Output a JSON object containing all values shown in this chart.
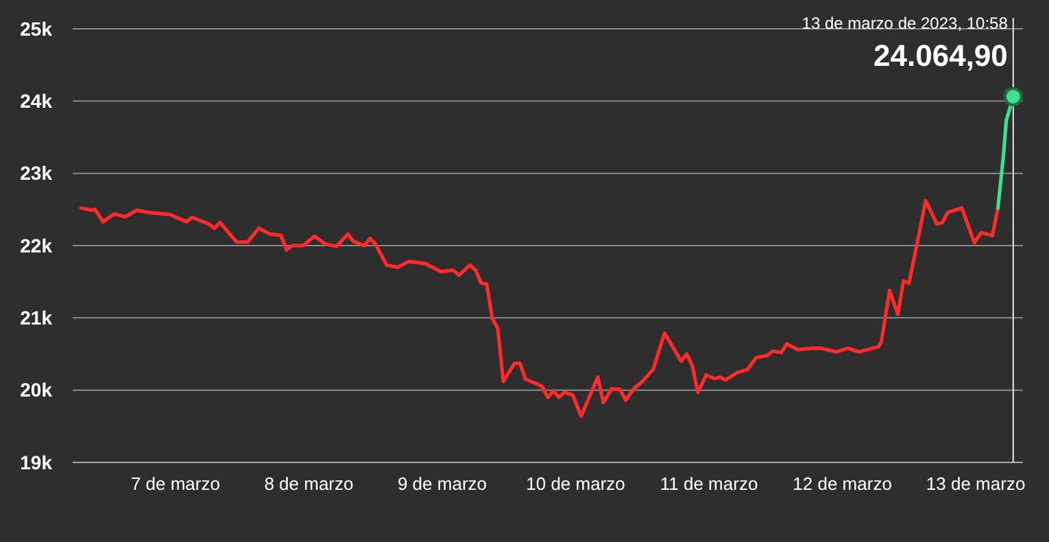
{
  "chart_data": {
    "type": "line",
    "grid": "y",
    "marker": "none",
    "line_style": "solid",
    "xlim": [
      "2023-03-06T05:30",
      "2023-03-13T08:30"
    ],
    "xticks": [
      {
        "value": "2023-03-07",
        "label": "7 de marzo"
      },
      {
        "value": "2023-03-08",
        "label": "8 de marzo"
      },
      {
        "value": "2023-03-09",
        "label": "9 de marzo"
      },
      {
        "value": "2023-03-10",
        "label": "10 de marzo"
      },
      {
        "value": "2023-03-11",
        "label": "11 de marzo"
      },
      {
        "value": "2023-03-12",
        "label": "12 de marzo"
      },
      {
        "value": "2023-03-13",
        "label": "13 de marzo"
      }
    ],
    "ylim": [
      19000,
      25000
    ],
    "yticks": [
      {
        "value": 19000,
        "label": "19k"
      },
      {
        "value": 20000,
        "label": "20k"
      },
      {
        "value": 21000,
        "label": "21k"
      },
      {
        "value": 22000,
        "label": "22k"
      },
      {
        "value": 23000,
        "label": "23k"
      },
      {
        "value": 24000,
        "label": "24k"
      },
      {
        "value": 25000,
        "label": "25k"
      }
    ],
    "ref_lines": [
      {
        "axis": "x",
        "value": "2023-03-13T06:45",
        "color": "#e8e8e8"
      }
    ],
    "annotations": [
      "13 de marzo de 2023, 10:58",
      "24.064,90"
    ],
    "series": [
      {
        "color": "#ff2a2a",
        "x": [
          "2023-03-06T07:00",
          "2023-03-06T09:00",
          "2023-03-06T09:30",
          "2023-03-06T11:00",
          "2023-03-06T13:00",
          "2023-03-06T15:00",
          "2023-03-06T17:00",
          "2023-03-06T19:00",
          "2023-03-06T23:00",
          "2023-03-07T02:00",
          "2023-03-07T03:00",
          "2023-03-07T06:00",
          "2023-03-07T07:00",
          "2023-03-07T08:00",
          "2023-03-07T11:00",
          "2023-03-07T13:00",
          "2023-03-07T15:00",
          "2023-03-07T17:00",
          "2023-03-07T19:00",
          "2023-03-07T20:00",
          "2023-03-07T21:00",
          "2023-03-07T23:00",
          "2023-03-08T01:00",
          "2023-03-08T03:00",
          "2023-03-08T05:00",
          "2023-03-08T07:00",
          "2023-03-08T08:00",
          "2023-03-08T10:00",
          "2023-03-08T11:00",
          "2023-03-08T12:00",
          "2023-03-08T14:00",
          "2023-03-08T16:00",
          "2023-03-08T18:00",
          "2023-03-08T21:00",
          "2023-03-08T23:45",
          "2023-03-09T02:00",
          "2023-03-09T03:00",
          "2023-03-09T05:00",
          "2023-03-09T06:00",
          "2023-03-09T07:00",
          "2023-03-09T08:00",
          "2023-03-09T09:00",
          "2023-03-09T10:00",
          "2023-03-09T11:00",
          "2023-03-09T13:00",
          "2023-03-09T14:00",
          "2023-03-09T15:00",
          "2023-03-09T17:00",
          "2023-03-09T18:00",
          "2023-03-09T19:00",
          "2023-03-09T20:00",
          "2023-03-09T21:00",
          "2023-03-09T22:00",
          "2023-03-09T23:30",
          "2023-03-10T01:00",
          "2023-03-10T04:00",
          "2023-03-10T05:00",
          "2023-03-10T06:30",
          "2023-03-10T08:00",
          "2023-03-10T09:00",
          "2023-03-10T10:30",
          "2023-03-10T12:00",
          "2023-03-10T14:00",
          "2023-03-10T16:00",
          "2023-03-10T17:00",
          "2023-03-10T19:00",
          "2023-03-10T20:00",
          "2023-03-10T21:00",
          "2023-03-10T22:00",
          "2023-03-10T23:30",
          "2023-03-11T01:00",
          "2023-03-11T02:00",
          "2023-03-11T03:00",
          "2023-03-11T05:00",
          "2023-03-11T07:00",
          "2023-03-11T08:30",
          "2023-03-11T10:30",
          "2023-03-11T11:30",
          "2023-03-11T13:00",
          "2023-03-11T14:00",
          "2023-03-11T16:00",
          "2023-03-11T18:30",
          "2023-03-11T20:00",
          "2023-03-11T23:00",
          "2023-03-12T01:00",
          "2023-03-12T03:00",
          "2023-03-12T06:30",
          "2023-03-12T07:00",
          "2023-03-12T08:30",
          "2023-03-12T10:00",
          "2023-03-12T11:00",
          "2023-03-12T12:00",
          "2023-03-12T15:00",
          "2023-03-12T17:00",
          "2023-03-12T18:00",
          "2023-03-12T19:00",
          "2023-03-12T21:30",
          "2023-03-12T23:45",
          "2023-03-13T01:00",
          "2023-03-13T03:00",
          "2023-03-13T04:00"
        ],
        "values": [
          22520,
          22490,
          22500,
          22330,
          22440,
          22400,
          22490,
          22460,
          22430,
          22330,
          22390,
          22300,
          22240,
          22320,
          22050,
          22050,
          22240,
          22160,
          22140,
          21940,
          22000,
          22000,
          22130,
          22020,
          21990,
          22160,
          22060,
          22000,
          22100,
          22020,
          21730,
          21700,
          21780,
          21750,
          21640,
          21660,
          21590,
          21730,
          21660,
          21480,
          21470,
          21000,
          20850,
          20120,
          20370,
          20370,
          20150,
          20090,
          20050,
          19900,
          19990,
          19900,
          19970,
          19930,
          19640,
          20180,
          19830,
          20020,
          20010,
          19860,
          20020,
          20120,
          20290,
          20790,
          20660,
          20400,
          20500,
          20340,
          19970,
          20210,
          20160,
          20180,
          20140,
          20240,
          20290,
          20450,
          20480,
          20540,
          20520,
          20640,
          20560,
          20580,
          20580,
          20530,
          20580,
          20530,
          20600,
          20660,
          21380,
          21050,
          21510,
          21480,
          22620,
          22300,
          22320,
          22460,
          22520,
          22040,
          22180,
          22140,
          22520
        ]
      },
      {
        "color": "#3ee08f",
        "x": [
          "2023-03-13T04:00",
          "2023-03-13T05:00",
          "2023-03-13T05:30",
          "2023-03-13T06:45"
        ],
        "values": [
          22520,
          23250,
          23730,
          24060
        ]
      },
      {
        "type": "scatter",
        "marker": "circle",
        "color": "#3ee08f",
        "x": [
          "2023-03-13T06:45"
        ],
        "values": [
          24060
        ]
      }
    ]
  }
}
